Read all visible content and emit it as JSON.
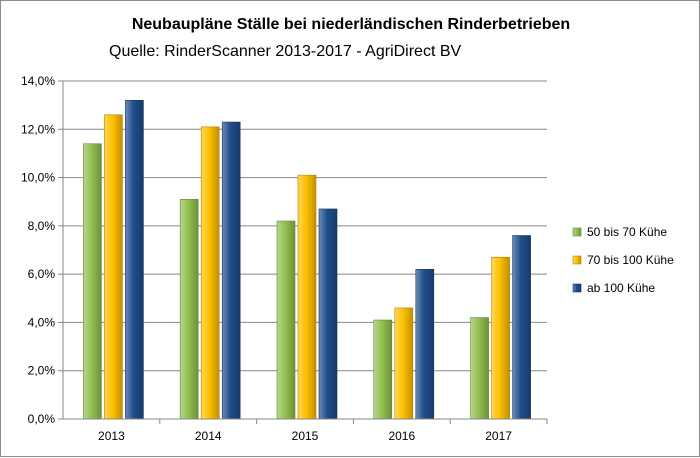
{
  "chart_data": {
    "type": "bar",
    "title": "Neubaupläne Ställe bei niederländischen Rinderbetrieben",
    "subtitle": "Quelle: RinderScanner  2013-2017 - AgriDirect BV",
    "categories": [
      "2013",
      "2014",
      "2015",
      "2016",
      "2017"
    ],
    "series": [
      {
        "name": "50 bis 70 Kühe",
        "values": [
          11.4,
          9.1,
          8.2,
          4.1,
          4.2
        ],
        "color": "#92c050"
      },
      {
        "name": "70 bis 100 Kühe",
        "values": [
          12.6,
          12.1,
          10.1,
          4.6,
          6.7
        ],
        "color": "#ffc000"
      },
      {
        "name": "ab 100 Kühe",
        "values": [
          13.2,
          12.3,
          8.7,
          6.2,
          7.6
        ],
        "color": "#1f4e8c"
      }
    ],
    "ylim": [
      0,
      14
    ],
    "yticks": [
      "0,0%",
      "2,0%",
      "4,0%",
      "6,0%",
      "8,0%",
      "10,0%",
      "12,0%",
      "14,0%"
    ],
    "grid": true,
    "legend_position": "right"
  }
}
